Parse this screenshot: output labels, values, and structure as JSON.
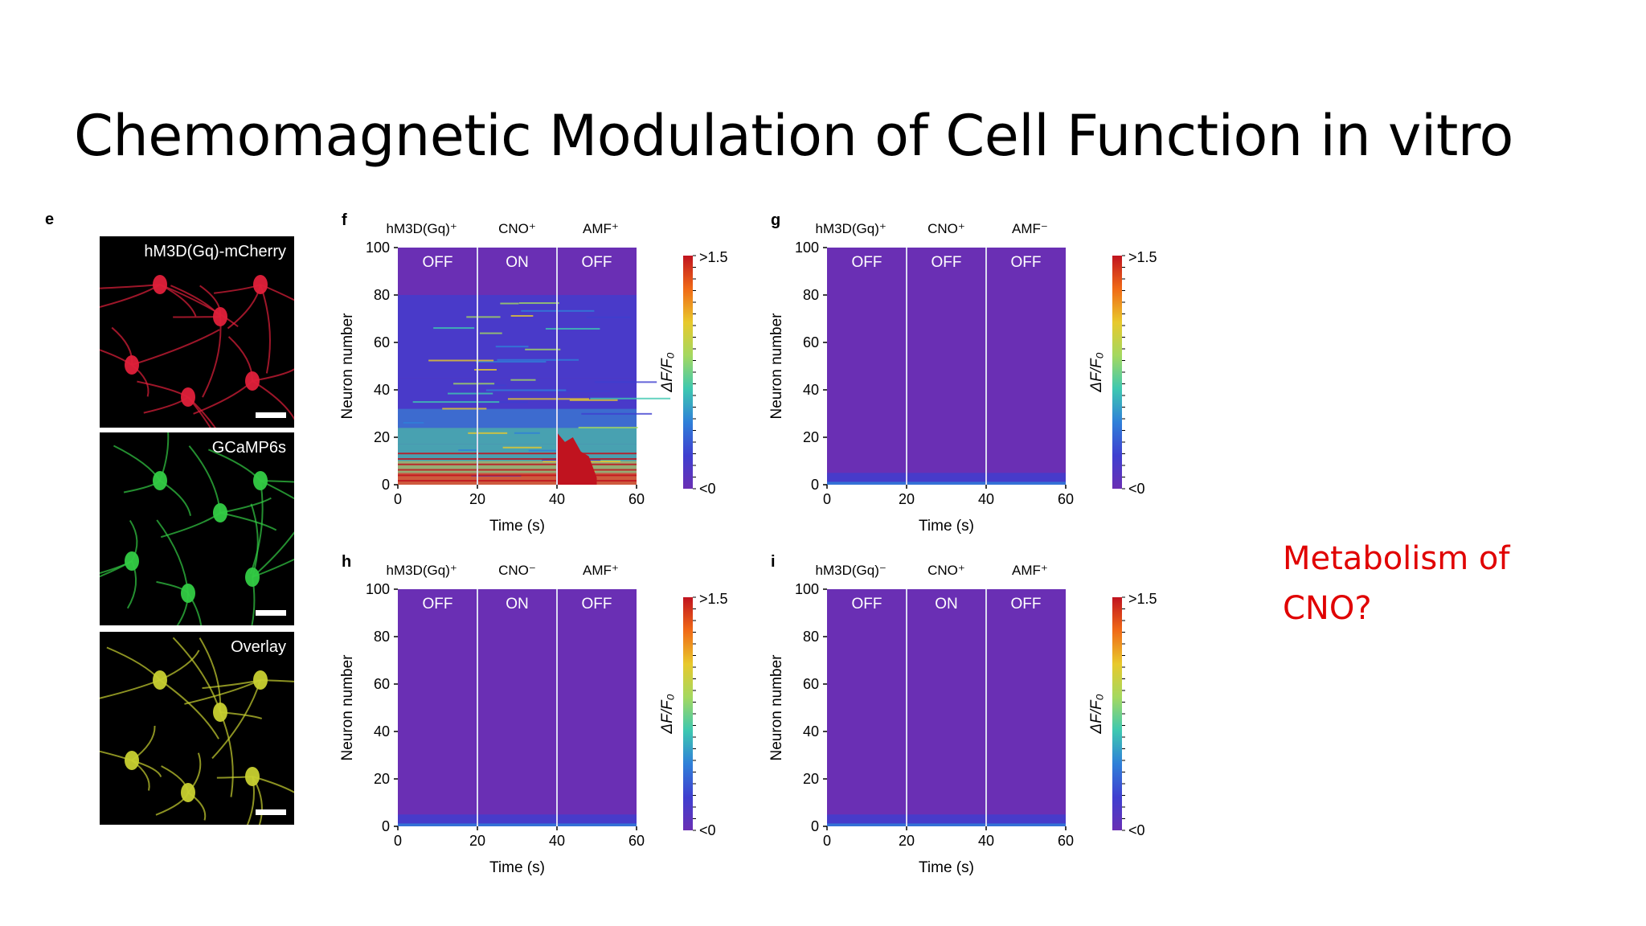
{
  "slide": {
    "title": "Chemomagnetic Modulation of Cell Function in vitro",
    "note_lines": [
      "Metabolism of",
      "CNO?"
    ]
  },
  "panel_e": {
    "letter": "e",
    "images": [
      {
        "label": "hM3D(Gq)-mCherry",
        "color": "#e0203a"
      },
      {
        "label": "GCaMP6s",
        "color": "#33cc44"
      },
      {
        "label": "Overlay",
        "color": "#c8d030"
      }
    ]
  },
  "colors": {
    "heat_bg": "#6a2fb4",
    "colormap": [
      "#c0131f",
      "#f06a17",
      "#e8c92c",
      "#a4d860",
      "#3ec8b0",
      "#2f80d8",
      "#3f3fd0",
      "#6a2fb4"
    ]
  },
  "chart_data": [
    {
      "type": "heatmap",
      "panel": "f",
      "condition_labels": [
        "hM3D(Gq)⁺",
        "CNO⁺",
        "AMF⁺"
      ],
      "phase_labels": [
        "OFF",
        "ON",
        "OFF"
      ],
      "xlabel": "Time (s)",
      "ylabel": "Neuron number",
      "x_ticks": [
        "0",
        "20",
        "40",
        "60"
      ],
      "y_ticks": [
        "0",
        "20",
        "40",
        "60",
        "80",
        "100"
      ],
      "xlim": [
        0,
        60
      ],
      "ylim": [
        0,
        100
      ],
      "phase_boundaries": [
        20,
        40
      ],
      "colorbar_label": "ΔF/F₀",
      "colorbar_ticks": [
        ">1.5",
        "<0"
      ],
      "activity": "high"
    },
    {
      "type": "heatmap",
      "panel": "g",
      "condition_labels": [
        "hM3D(Gq)⁺",
        "CNO⁺",
        "AMF⁻"
      ],
      "phase_labels": [
        "OFF",
        "OFF",
        "OFF"
      ],
      "xlabel": "Time (s)",
      "ylabel": "Neuron number",
      "x_ticks": [
        "0",
        "20",
        "40",
        "60"
      ],
      "y_ticks": [
        "0",
        "20",
        "40",
        "60",
        "80",
        "100"
      ],
      "xlim": [
        0,
        60
      ],
      "ylim": [
        0,
        100
      ],
      "phase_boundaries": [
        20,
        40
      ],
      "colorbar_label": "ΔF/F₀",
      "colorbar_ticks": [
        ">1.5",
        "<0"
      ],
      "activity": "low"
    },
    {
      "type": "heatmap",
      "panel": "h",
      "condition_labels": [
        "hM3D(Gq)⁺",
        "CNO⁻",
        "AMF⁺"
      ],
      "phase_labels": [
        "OFF",
        "ON",
        "OFF"
      ],
      "xlabel": "Time (s)",
      "ylabel": "Neuron number",
      "x_ticks": [
        "0",
        "20",
        "40",
        "60"
      ],
      "y_ticks": [
        "0",
        "20",
        "40",
        "60",
        "80",
        "100"
      ],
      "xlim": [
        0,
        60
      ],
      "ylim": [
        0,
        100
      ],
      "phase_boundaries": [
        20,
        40
      ],
      "colorbar_label": "ΔF/F₀",
      "colorbar_ticks": [
        ">1.5",
        "<0"
      ],
      "activity": "low"
    },
    {
      "type": "heatmap",
      "panel": "i",
      "condition_labels": [
        "hM3D(Gq)⁻",
        "CNO⁺",
        "AMF⁺"
      ],
      "phase_labels": [
        "OFF",
        "ON",
        "OFF"
      ],
      "xlabel": "Time (s)",
      "ylabel": "Neuron number",
      "x_ticks": [
        "0",
        "20",
        "40",
        "60"
      ],
      "y_ticks": [
        "0",
        "20",
        "40",
        "60",
        "80",
        "100"
      ],
      "xlim": [
        0,
        60
      ],
      "ylim": [
        0,
        100
      ],
      "phase_boundaries": [
        20,
        40
      ],
      "colorbar_label": "ΔF/F₀",
      "colorbar_ticks": [
        ">1.5",
        "<0"
      ],
      "activity": "low"
    }
  ]
}
